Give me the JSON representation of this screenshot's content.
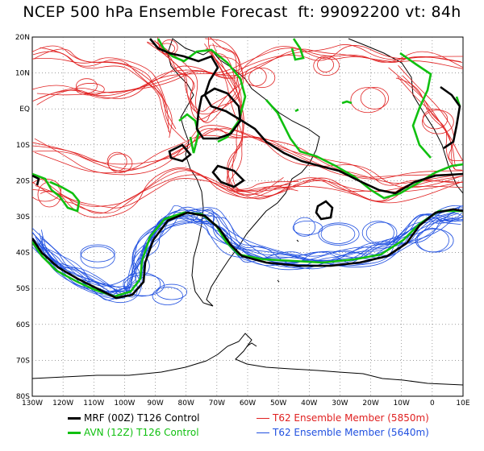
{
  "title": "NCEP 500 hPa Ensemble Forecast  ft: 99092200 vt: 84h",
  "axes": {
    "lon_labels": [
      "130W",
      "120W",
      "110W",
      "100W",
      "90W",
      "80W",
      "70W",
      "60W",
      "50W",
      "40W",
      "30W",
      "20W",
      "10W",
      "0",
      "10E"
    ],
    "lat_labels": [
      "20N",
      "10N",
      "EQ",
      "10S",
      "20S",
      "30S",
      "40S",
      "50S",
      "60S",
      "70S",
      "80S"
    ]
  },
  "legend": [
    {
      "label": "MRF (00Z) T126 Control",
      "color": "#000000",
      "width": 3
    },
    {
      "label": "AVN (12Z) T126 Control",
      "color": "#10c010",
      "width": 3
    },
    {
      "label": "T62 Ensemble Member (5850m)",
      "color": "#e02020",
      "width": 1
    },
    {
      "label": "T62 Ensemble Member (5640m)",
      "color": "#2050e0",
      "width": 1
    }
  ],
  "colors": {
    "mrf": "#000000",
    "avn": "#10c010",
    "red": "#e02020",
    "blue": "#2050e0"
  }
}
